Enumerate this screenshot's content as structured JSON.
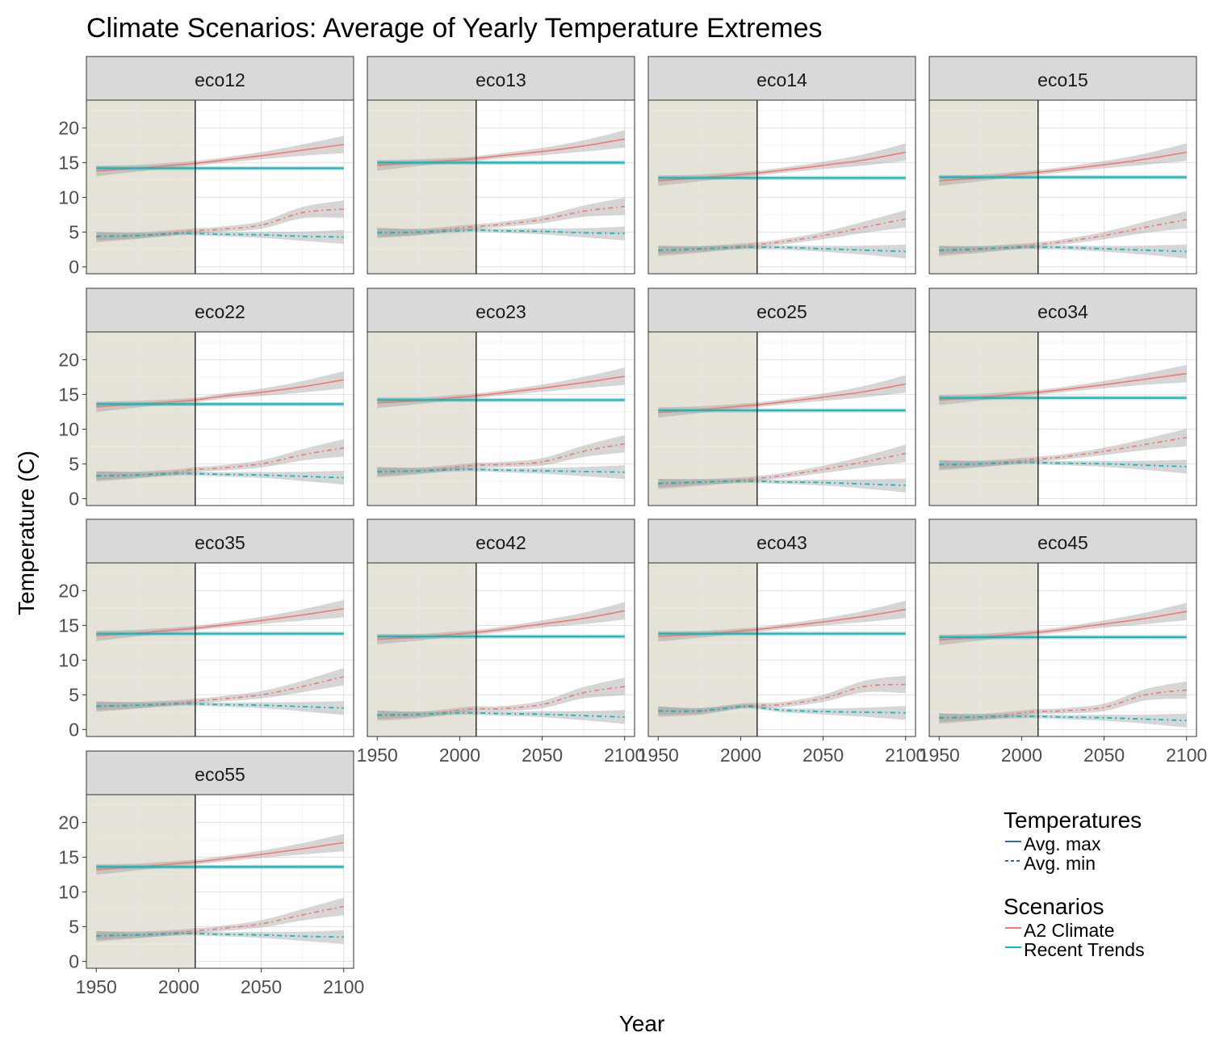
{
  "chart_data": {
    "type": "line",
    "title": "Climate Scenarios: Average of Yearly Temperature Extremes",
    "xlabel": "Year",
    "ylabel": "Temperature (C)",
    "xlim": [
      1944,
      2106
    ],
    "ylim": [
      -1,
      24
    ],
    "x_ticks": [
      1950,
      2000,
      2050,
      2100
    ],
    "y_ticks": [
      0,
      5,
      10,
      15,
      20
    ],
    "historical_period": [
      1944,
      2010
    ],
    "divider_year": 2010,
    "grid": true,
    "colors": {
      "a2": "#F8766D",
      "recent": "#00BFC4",
      "ribbon": "#999999",
      "history_shade": "#e5e2d7",
      "strip": "#d9d9d9",
      "legend_key": "#3366cc"
    },
    "legend": {
      "position": "bottom-right",
      "temperatures_title": "Temperatures",
      "temperatures": [
        {
          "label": "Avg. max",
          "linetype": "solid"
        },
        {
          "label": "Avg. min",
          "linetype": "dashed"
        }
      ],
      "scenarios_title": "Scenarios",
      "scenarios": [
        {
          "label": "A2 Climate",
          "color": "#F8766D"
        },
        {
          "label": "Recent Trends",
          "color": "#00BFC4"
        }
      ]
    },
    "x": [
      1950,
      1975,
      2000,
      2010,
      2025,
      2050,
      2075,
      2100
    ],
    "panels": [
      {
        "name": "eco12",
        "a2_max": [
          13.8,
          14.2,
          14.7,
          14.9,
          15.3,
          16.0,
          16.8,
          17.6
        ],
        "recent_max": 14.2,
        "a2_min": [
          4.3,
          4.5,
          5.0,
          5.2,
          5.4,
          6.0,
          7.8,
          8.3
        ],
        "recent_min": [
          4.4,
          4.5,
          4.8,
          4.8,
          4.7,
          4.6,
          4.4,
          4.3
        ]
      },
      {
        "name": "eco13",
        "a2_max": [
          14.6,
          15.0,
          15.4,
          15.6,
          16.0,
          16.6,
          17.4,
          18.4
        ],
        "recent_max": 15.0,
        "a2_min": [
          4.9,
          5.0,
          5.6,
          5.8,
          6.1,
          6.8,
          8.0,
          8.7
        ],
        "recent_min": [
          4.9,
          5.0,
          5.2,
          5.3,
          5.2,
          5.1,
          4.9,
          4.8
        ]
      },
      {
        "name": "eco14",
        "a2_max": [
          12.4,
          12.8,
          13.3,
          13.5,
          13.9,
          14.6,
          15.4,
          16.5
        ],
        "recent_max": 12.8,
        "a2_min": [
          2.3,
          2.5,
          3.0,
          3.2,
          3.6,
          4.5,
          5.7,
          6.9
        ],
        "recent_min": [
          2.4,
          2.6,
          2.8,
          2.8,
          2.8,
          2.6,
          2.4,
          2.2
        ]
      },
      {
        "name": "eco15",
        "a2_max": [
          12.4,
          12.8,
          13.4,
          13.6,
          14.0,
          14.7,
          15.5,
          16.5
        ],
        "recent_max": 12.9,
        "a2_min": [
          2.3,
          2.5,
          3.0,
          3.2,
          3.6,
          4.5,
          5.7,
          6.8
        ],
        "recent_min": [
          2.4,
          2.6,
          2.8,
          2.8,
          2.8,
          2.6,
          2.4,
          2.2
        ]
      },
      {
        "name": "eco22",
        "a2_max": [
          13.2,
          13.6,
          14.0,
          14.2,
          14.7,
          15.3,
          16.1,
          17.1
        ],
        "recent_max": 13.6,
        "a2_min": [
          3.2,
          3.4,
          3.9,
          4.2,
          4.4,
          5.0,
          6.3,
          7.3
        ],
        "recent_min": [
          3.3,
          3.4,
          3.6,
          3.6,
          3.5,
          3.4,
          3.2,
          3.0
        ]
      },
      {
        "name": "eco23",
        "a2_max": [
          13.8,
          14.1,
          14.6,
          14.8,
          15.2,
          15.9,
          16.7,
          17.6
        ],
        "recent_max": 14.2,
        "a2_min": [
          3.8,
          4.0,
          4.6,
          4.8,
          4.9,
          5.3,
          6.8,
          7.9
        ],
        "recent_min": [
          3.9,
          4.0,
          4.2,
          4.2,
          4.1,
          4.0,
          3.9,
          3.8
        ]
      },
      {
        "name": "eco25",
        "a2_max": [
          12.4,
          12.8,
          13.3,
          13.5,
          13.9,
          14.6,
          15.4,
          16.5
        ],
        "recent_max": 12.7,
        "a2_min": [
          2.1,
          2.3,
          2.7,
          2.9,
          3.3,
          4.2,
          5.3,
          6.5
        ],
        "recent_min": [
          2.2,
          2.4,
          2.5,
          2.5,
          2.4,
          2.3,
          2.1,
          1.9
        ]
      },
      {
        "name": "eco34",
        "a2_max": [
          14.2,
          14.6,
          15.1,
          15.3,
          15.7,
          16.4,
          17.2,
          18.0
        ],
        "recent_max": 14.5,
        "a2_min": [
          4.8,
          5.0,
          5.5,
          5.7,
          6.0,
          6.8,
          7.8,
          8.8
        ],
        "recent_min": [
          4.9,
          5.0,
          5.2,
          5.2,
          5.1,
          5.0,
          4.8,
          4.6
        ]
      },
      {
        "name": "eco35",
        "a2_max": [
          13.5,
          13.9,
          14.4,
          14.6,
          15.0,
          15.7,
          16.5,
          17.4
        ],
        "recent_max": 13.8,
        "a2_min": [
          3.3,
          3.5,
          3.9,
          4.1,
          4.4,
          5.0,
          6.2,
          7.6
        ],
        "recent_min": [
          3.4,
          3.5,
          3.7,
          3.7,
          3.6,
          3.5,
          3.3,
          3.1
        ]
      },
      {
        "name": "eco42",
        "a2_max": [
          13.0,
          13.3,
          13.8,
          14.0,
          14.4,
          15.2,
          16.0,
          17.1
        ],
        "recent_max": 13.4,
        "a2_min": [
          2.0,
          2.1,
          2.8,
          3.0,
          3.0,
          3.6,
          5.3,
          6.2
        ],
        "recent_min": [
          2.1,
          2.2,
          2.4,
          2.4,
          2.3,
          2.2,
          2.0,
          1.8
        ]
      },
      {
        "name": "eco43",
        "a2_max": [
          13.4,
          13.7,
          14.2,
          14.4,
          14.8,
          15.5,
          16.3,
          17.3
        ],
        "recent_max": 13.8,
        "a2_min": [
          2.6,
          2.6,
          3.4,
          3.5,
          3.6,
          4.5,
          6.2,
          6.5
        ],
        "recent_min": [
          2.7,
          2.7,
          3.3,
          3.2,
          2.8,
          2.6,
          2.5,
          2.4
        ]
      },
      {
        "name": "eco45",
        "a2_max": [
          12.9,
          13.3,
          13.8,
          14.0,
          14.4,
          15.2,
          16.0,
          17.0
        ],
        "recent_max": 13.3,
        "a2_min": [
          1.6,
          1.8,
          2.4,
          2.6,
          2.7,
          3.2,
          5.0,
          5.7
        ],
        "recent_min": [
          1.7,
          1.8,
          1.9,
          1.9,
          1.8,
          1.7,
          1.5,
          1.3
        ]
      },
      {
        "name": "eco55",
        "a2_max": [
          13.2,
          13.6,
          14.1,
          14.3,
          14.7,
          15.4,
          16.2,
          17.1
        ],
        "recent_max": 13.6,
        "a2_min": [
          3.6,
          3.8,
          4.2,
          4.4,
          4.7,
          5.4,
          6.7,
          7.9
        ],
        "recent_min": [
          3.7,
          3.8,
          4.0,
          4.0,
          3.9,
          3.8,
          3.6,
          3.5
        ]
      }
    ]
  }
}
